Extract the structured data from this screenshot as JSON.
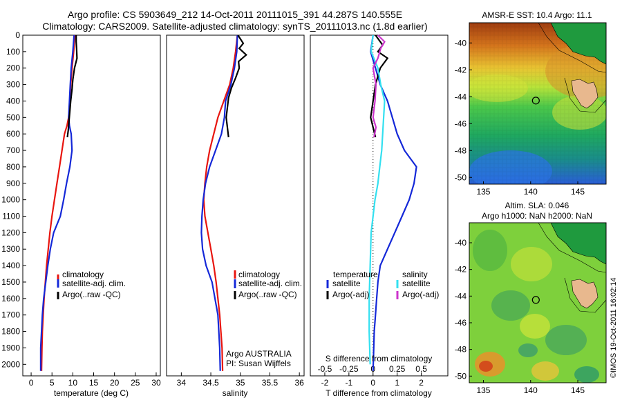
{
  "header": {
    "line1": "Argo profile: CS 5903649_212 14-Oct-2011 20111015_391 44.287S 140.555E",
    "line2": "Climatology: CARS2009. Satellite-adjusted climatology: synTS_20111013.nc (1.8d earlier)"
  },
  "colors": {
    "climatology": "#e8150f",
    "satellite": "#1428d8",
    "argo": "#000000",
    "sat_sal": "#33e0f0",
    "argo_sal": "#cc33cc"
  },
  "panels": {
    "temperature": {
      "xlabel": "temperature (deg C)",
      "legend": [
        "climatology",
        "satellite-adj. clim.",
        "Argo(..raw -QC)"
      ]
    },
    "salinity": {
      "xlabel": "salinity",
      "legend": [
        "climatology",
        "satellite-adj. clim.",
        "Argo(..raw -QC)"
      ],
      "credit1": "Argo AUSTRALIA",
      "credit2": "PI: Susan Wijffels"
    },
    "difference": {
      "xlabel_top": "S difference from climatology",
      "xlabel_bottom": "T difference from climatology",
      "legend_temp_title": "temperature",
      "legend_sal_title": "salinity",
      "legend_temp": [
        "satellite",
        "Argo(-adj)"
      ],
      "legend_sal": [
        "satellite",
        "Argo(-adj)"
      ]
    }
  },
  "maps": {
    "sst_title": "AMSR-E SST: 10.4  Argo: 11.1",
    "sla_title1": "Altim. SLA: 0.046",
    "sla_title2": "Argo h1000: NaN h2000: NaN",
    "stamp": "©IMOS 19-Oct-2011 16:02:14",
    "lat_ticks": [
      "-40",
      "-42",
      "-44",
      "-46",
      "-48",
      "-50"
    ],
    "lon_ticks": [
      "135",
      "140",
      "145"
    ],
    "float_position": {
      "lon": 140.555,
      "lat": -44.287
    }
  },
  "chart_data": [
    {
      "type": "line",
      "title": "Argo profile: CS 5903649_212 14-Oct-2011 20111015_391 44.287S 140.555E",
      "xlabel": "temperature (deg C)",
      "ylabel": "",
      "xlim": [
        -2,
        31
      ],
      "ylim": [
        2070,
        0
      ],
      "xticks": [
        "0",
        "5",
        "10",
        "15",
        "20",
        "25",
        "30"
      ],
      "yticks": [
        "0",
        "100",
        "200",
        "300",
        "400",
        "500",
        "600",
        "700",
        "800",
        "900",
        "1000",
        "1100",
        "1200",
        "1300",
        "1400",
        "1500",
        "1600",
        "1700",
        "1800",
        "1900",
        "2000"
      ],
      "series": [
        {
          "name": "climatology",
          "color": "#e8150f",
          "x": [
            10.5,
            10.2,
            9.8,
            9.5,
            9.3,
            9.0,
            8.6,
            8.0,
            7.4,
            6.8,
            6.2,
            5.6,
            5.0,
            4.5,
            4.1,
            3.7,
            3.4,
            3.1,
            2.9,
            2.7,
            2.6,
            2.5
          ],
          "y": [
            0,
            100,
            200,
            300,
            400,
            500,
            550,
            600,
            700,
            800,
            900,
            1000,
            1100,
            1200,
            1300,
            1400,
            1500,
            1600,
            1700,
            1800,
            1900,
            2040
          ]
        },
        {
          "name": "satellite-adj. clim.",
          "color": "#1428d8",
          "x": [
            10.3,
            10.0,
            9.6,
            9.4,
            9.2,
            9.0,
            9.2,
            9.6,
            9.8,
            9.3,
            8.5,
            7.8,
            7.0,
            5.4,
            4.6,
            4.0,
            3.5,
            3.0,
            2.7,
            2.5,
            2.3,
            2.3
          ],
          "y": [
            0,
            100,
            200,
            300,
            400,
            500,
            550,
            600,
            700,
            800,
            900,
            1000,
            1100,
            1200,
            1300,
            1400,
            1500,
            1600,
            1700,
            1800,
            1900,
            2040
          ]
        },
        {
          "name": "Argo(..raw -QC)",
          "color": "#000000",
          "x": [
            10.8,
            10.8,
            10.9,
            11.0,
            10.4,
            10.0,
            9.8,
            9.5,
            9.3,
            9.1,
            8.9,
            8.7
          ],
          "y": [
            0,
            40,
            80,
            140,
            200,
            270,
            330,
            400,
            460,
            520,
            580,
            620
          ]
        }
      ]
    },
    {
      "type": "line",
      "xlabel": "salinity",
      "ylabel": "",
      "xlim": [
        33.75,
        36.08
      ],
      "ylim": [
        2070,
        0
      ],
      "xticks": [
        "34",
        "34.5",
        "35",
        "35.5",
        "36"
      ],
      "series": [
        {
          "name": "climatology",
          "color": "#e8150f",
          "x": [
            34.95,
            34.92,
            34.88,
            34.82,
            34.72,
            34.62,
            34.55,
            34.48,
            34.43,
            34.4,
            34.38,
            34.4,
            34.45,
            34.5,
            34.55,
            34.59,
            34.62,
            34.65,
            34.67,
            34.69,
            34.7
          ],
          "y": [
            0,
            100,
            200,
            300,
            400,
            500,
            600,
            700,
            800,
            900,
            1000,
            1100,
            1200,
            1300,
            1400,
            1500,
            1600,
            1700,
            1800,
            1900,
            2040
          ]
        },
        {
          "name": "satellite-adj. clim.",
          "color": "#1428d8",
          "x": [
            34.95,
            34.94,
            34.9,
            34.84,
            34.75,
            34.73,
            34.68,
            34.58,
            34.48,
            34.41,
            34.37,
            34.35,
            34.34,
            34.36,
            34.42,
            34.52,
            34.62,
            34.65,
            34.66
          ],
          "y": [
            0,
            100,
            200,
            300,
            400,
            500,
            600,
            700,
            800,
            900,
            1000,
            1100,
            1200,
            1300,
            1400,
            1500,
            1700,
            1900,
            2040
          ]
        },
        {
          "name": "Argo(..raw -QC)",
          "color": "#000000",
          "x": [
            34.96,
            35.05,
            34.98,
            35.1,
            34.97,
            34.98,
            34.92,
            34.85,
            34.8,
            34.78,
            34.76,
            34.78,
            34.8
          ],
          "y": [
            0,
            50,
            80,
            120,
            160,
            200,
            260,
            320,
            380,
            440,
            500,
            560,
            620
          ]
        }
      ]
    },
    {
      "type": "line",
      "xlabel": "T difference from climatology",
      "x2label": "S difference from climatology",
      "xlim": [
        -2.6,
        3.1
      ],
      "x2lim": [
        -0.65,
        0.775
      ],
      "ylim": [
        2070,
        0
      ],
      "xticks": [
        "-2",
        "-1",
        "0",
        "1",
        "2"
      ],
      "x2ticks": [
        "-0.5",
        "-0.25",
        "0",
        "0.25",
        "0.5"
      ],
      "series": [
        {
          "name": "satellite",
          "group": "temperature",
          "color": "#1428d8",
          "x": [
            0.0,
            -0.1,
            0.1,
            0.3,
            0.6,
            0.8,
            1.0,
            1.3,
            1.8,
            1.7,
            1.5,
            1.2,
            0.9,
            0.6,
            0.3,
            0.2,
            0.15,
            0.1,
            0.05,
            0.0
          ],
          "y": [
            0,
            100,
            200,
            300,
            400,
            500,
            600,
            700,
            800,
            900,
            1000,
            1100,
            1200,
            1300,
            1400,
            1500,
            1600,
            1700,
            1800,
            2040
          ]
        },
        {
          "name": "Argo(-adj)",
          "group": "temperature",
          "color": "#000000",
          "x": [
            0.1,
            0.4,
            0.2,
            0.6,
            0.3,
            0.1,
            0.0,
            -0.1,
            0.0,
            0.1
          ],
          "y": [
            0,
            60,
            100,
            140,
            200,
            300,
            400,
            500,
            560,
            620
          ]
        },
        {
          "name": "satellite",
          "group": "salinity",
          "color": "#33e0f0",
          "x": [
            0.0,
            -0.02,
            0.05,
            0.08,
            0.12,
            0.11,
            0.1,
            0.09,
            0.07,
            0.05,
            0.02,
            0.0,
            -0.02,
            -0.03,
            -0.04,
            -0.04,
            -0.03
          ],
          "y": [
            0,
            100,
            200,
            300,
            400,
            500,
            600,
            700,
            800,
            900,
            1000,
            1100,
            1200,
            1400,
            1600,
            1800,
            2000
          ]
        },
        {
          "name": "Argo(-adj)",
          "group": "salinity",
          "color": "#cc33cc",
          "x": [
            0.05,
            0.12,
            0.08,
            0.05,
            0.0,
            0.03,
            0.02,
            0.0,
            0.03,
            0.01
          ],
          "y": [
            0,
            40,
            80,
            140,
            200,
            300,
            400,
            500,
            560,
            620
          ]
        }
      ]
    }
  ]
}
